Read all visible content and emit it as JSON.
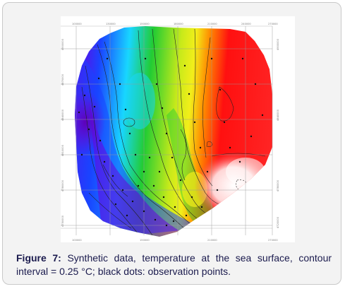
{
  "figure": {
    "label": "Figure 7:",
    "caption": "Synthetic data, temperature at the sea surface, contour interval = 0.25 °C; black dots: observation points."
  },
  "map": {
    "x_ticks": [
      "100000",
      "130000",
      "150000",
      "180000",
      "210000",
      "240000",
      "270000",
      "300000"
    ],
    "y_ticks": [
      "4900000",
      "4870000",
      "4840000",
      "4810000",
      "4780000",
      "4750000",
      "4720000"
    ],
    "colors": {
      "cold": "#7a00d4",
      "blue": "#1a44ff",
      "cyan": "#18d6ff",
      "green": "#22cc33",
      "yellow": "#f2ee1a",
      "orange": "#ff8a00",
      "warm": "#ff1010",
      "hot": "#ffffff"
    }
  }
}
